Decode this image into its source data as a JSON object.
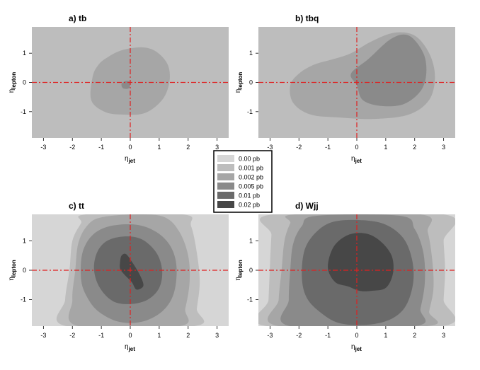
{
  "chart_data": [
    {
      "type": "heatmap",
      "title": "a) tb",
      "xlabel": {
        "base": "η",
        "sub": "jet"
      },
      "ylabel": {
        "base": "η",
        "sub": "lepton"
      },
      "xlim": [
        -3.4,
        3.4
      ],
      "ylim": [
        -1.9,
        1.9
      ],
      "xticks": [
        -3,
        -2,
        -1,
        0,
        1,
        2,
        3
      ],
      "yticks": [
        1,
        0,
        -1
      ],
      "background_level": "0.001 pb",
      "regions": [
        {
          "level": "0.002 pb",
          "outline": [
            [
              -1.3,
              0.2
            ],
            [
              -1.1,
              0.6
            ],
            [
              -0.8,
              0.85
            ],
            [
              -0.3,
              1.1
            ],
            [
              0.4,
              1.2
            ],
            [
              0.9,
              1.05
            ],
            [
              1.3,
              0.6
            ],
            [
              1.35,
              0.0
            ],
            [
              1.1,
              -0.6
            ],
            [
              0.5,
              -1.05
            ],
            [
              -0.3,
              -1.1
            ],
            [
              -0.9,
              -1.0
            ],
            [
              -1.35,
              -0.6
            ]
          ]
        },
        {
          "level": "0.005 pb",
          "outline": [
            [
              -0.3,
              -0.05
            ],
            [
              -0.15,
              0.05
            ],
            [
              0.0,
              0.0
            ],
            [
              -0.05,
              -0.2
            ],
            [
              -0.25,
              -0.2
            ]
          ]
        }
      ],
      "crosshair": {
        "x": 0,
        "y": 0
      }
    },
    {
      "type": "heatmap",
      "title": "b) tbq",
      "xlabel": {
        "base": "η",
        "sub": "jet"
      },
      "ylabel": {
        "base": "η",
        "sub": "lepton"
      },
      "xlim": [
        -3.4,
        3.4
      ],
      "ylim": [
        -1.9,
        1.9
      ],
      "xticks": [
        -3,
        -2,
        -1,
        0,
        1,
        2,
        3
      ],
      "yticks": [
        1,
        0,
        -1
      ],
      "background_level": "0.001 pb",
      "regions": [
        {
          "level": "0.002 pb",
          "outline": [
            [
              -2.3,
              -0.1
            ],
            [
              -2.0,
              0.3
            ],
            [
              -1.5,
              0.6
            ],
            [
              -0.8,
              0.8
            ],
            [
              -0.2,
              1.0
            ],
            [
              0.5,
              1.4
            ],
            [
              1.3,
              1.7
            ],
            [
              2.0,
              1.6
            ],
            [
              2.5,
              1.0
            ],
            [
              2.7,
              0.2
            ],
            [
              2.5,
              -0.6
            ],
            [
              1.8,
              -1.1
            ],
            [
              0.6,
              -1.25
            ],
            [
              -0.6,
              -1.2
            ],
            [
              -1.6,
              -1.1
            ],
            [
              -2.2,
              -0.7
            ]
          ]
        },
        {
          "level": "0.005 pb",
          "outline": [
            [
              -0.2,
              0.3
            ],
            [
              0.4,
              0.8
            ],
            [
              1.2,
              1.5
            ],
            [
              1.8,
              1.6
            ],
            [
              2.3,
              1.0
            ],
            [
              2.4,
              0.3
            ],
            [
              2.2,
              -0.3
            ],
            [
              1.6,
              -0.75
            ],
            [
              0.8,
              -0.8
            ],
            [
              0.2,
              -0.6
            ],
            [
              0.0,
              -0.1
            ]
          ]
        }
      ],
      "crosshair": {
        "x": 0,
        "y": 0
      }
    },
    {
      "type": "heatmap",
      "title": "c) tt",
      "xlabel": {
        "base": "η",
        "sub": "jet"
      },
      "ylabel": {
        "base": "η",
        "sub": "lepton"
      },
      "xlim": [
        -3.4,
        3.4
      ],
      "ylim": [
        -1.9,
        1.9
      ],
      "xticks": [
        -3,
        -2,
        -1,
        0,
        1,
        2,
        3
      ],
      "yticks": [
        1,
        0,
        -1
      ],
      "background_level": "0.00 pb",
      "regions": [
        {
          "level": "0.001 pb",
          "outline": [
            [
              -2.2,
              -1.9
            ],
            [
              -2.25,
              -1.0
            ],
            [
              -2.1,
              0.0
            ],
            [
              -2.0,
              1.0
            ],
            [
              -1.7,
              1.6
            ],
            [
              -1.5,
              1.9
            ],
            [
              1.8,
              1.9
            ],
            [
              2.1,
              1.5
            ],
            [
              2.3,
              0.6
            ],
            [
              2.4,
              -0.4
            ],
            [
              2.3,
              -1.3
            ],
            [
              2.2,
              -1.9
            ]
          ]
        },
        {
          "level": "0.002 pb",
          "outline": [
            [
              -1.8,
              -1.9
            ],
            [
              -2.0,
              -1.0
            ],
            [
              -1.9,
              0.0
            ],
            [
              -1.8,
              0.9
            ],
            [
              -1.5,
              1.5
            ],
            [
              -1.0,
              1.8
            ],
            [
              0.3,
              1.9
            ],
            [
              1.2,
              1.8
            ],
            [
              1.7,
              1.3
            ],
            [
              2.0,
              0.5
            ],
            [
              2.05,
              -0.4
            ],
            [
              1.9,
              -1.3
            ],
            [
              1.7,
              -1.9
            ]
          ]
        },
        {
          "level": "0.005 pb",
          "outline": [
            [
              -1.7,
              -0.3
            ],
            [
              -1.65,
              0.6
            ],
            [
              -1.3,
              1.2
            ],
            [
              -0.7,
              1.5
            ],
            [
              0.2,
              1.55
            ],
            [
              0.9,
              1.3
            ],
            [
              1.4,
              0.8
            ],
            [
              1.6,
              0.1
            ],
            [
              1.5,
              -0.8
            ],
            [
              1.1,
              -1.4
            ],
            [
              0.4,
              -1.75
            ],
            [
              -0.4,
              -1.75
            ],
            [
              -1.1,
              -1.4
            ],
            [
              -1.5,
              -0.9
            ]
          ]
        },
        {
          "level": "0.01 pb",
          "outline": [
            [
              -1.25,
              0.0
            ],
            [
              -1.15,
              0.6
            ],
            [
              -0.8,
              1.0
            ],
            [
              -0.2,
              1.15
            ],
            [
              0.4,
              1.05
            ],
            [
              0.9,
              0.6
            ],
            [
              1.1,
              0.0
            ],
            [
              1.0,
              -0.6
            ],
            [
              0.6,
              -1.0
            ],
            [
              0.0,
              -1.15
            ],
            [
              -0.6,
              -1.05
            ],
            [
              -1.05,
              -0.6
            ]
          ]
        },
        {
          "level": "0.02 pb",
          "outline": [
            [
              -0.35,
              0.3
            ],
            [
              -0.3,
              0.5
            ],
            [
              -0.15,
              0.55
            ],
            [
              0.05,
              0.3
            ],
            [
              0.3,
              -0.1
            ],
            [
              0.45,
              -0.45
            ],
            [
              0.4,
              -0.6
            ],
            [
              0.2,
              -0.65
            ],
            [
              0.05,
              -0.4
            ],
            [
              -0.2,
              -0.15
            ],
            [
              -0.35,
              0.05
            ]
          ]
        }
      ],
      "crosshair": {
        "x": 0,
        "y": 0
      }
    },
    {
      "type": "heatmap",
      "title": "d) Wjj",
      "xlabel": {
        "base": "η",
        "sub": "jet"
      },
      "ylabel": {
        "base": "η",
        "sub": "lepton"
      },
      "xlim": [
        -3.4,
        3.4
      ],
      "ylim": [
        -1.9,
        1.9
      ],
      "xticks": [
        -3,
        -2,
        -1,
        0,
        1,
        2,
        3
      ],
      "yticks": [
        1,
        0,
        -1
      ],
      "background_level": "0.00 pb",
      "regions": [
        {
          "level": "0.001 pb",
          "outline": [
            [
              -3.1,
              -1.9
            ],
            [
              -3.05,
              -1.0
            ],
            [
              -3.0,
              0.2
            ],
            [
              -2.95,
              1.2
            ],
            [
              -2.9,
              1.9
            ],
            [
              3.0,
              1.9
            ],
            [
              3.0,
              1.0
            ],
            [
              3.05,
              0.0
            ],
            [
              3.0,
              -1.0
            ],
            [
              2.95,
              -1.9
            ]
          ]
        },
        {
          "level": "0.002 pb",
          "outline": [
            [
              -2.7,
              -1.9
            ],
            [
              -2.7,
              -1.0
            ],
            [
              -2.6,
              0.0
            ],
            [
              -2.5,
              1.0
            ],
            [
              -2.3,
              1.6
            ],
            [
              -2.1,
              1.9
            ],
            [
              2.2,
              1.9
            ],
            [
              2.45,
              1.3
            ],
            [
              2.6,
              0.4
            ],
            [
              2.65,
              -0.6
            ],
            [
              2.5,
              -1.4
            ],
            [
              2.4,
              -1.9
            ]
          ]
        },
        {
          "level": "0.005 pb",
          "outline": [
            [
              -2.3,
              -1.9
            ],
            [
              -2.35,
              -1.0
            ],
            [
              -2.3,
              0.0
            ],
            [
              -2.2,
              0.9
            ],
            [
              -1.9,
              1.5
            ],
            [
              -1.4,
              1.85
            ],
            [
              1.5,
              1.85
            ],
            [
              2.0,
              1.4
            ],
            [
              2.3,
              0.6
            ],
            [
              2.35,
              -0.4
            ],
            [
              2.2,
              -1.3
            ],
            [
              2.0,
              -1.9
            ]
          ]
        },
        {
          "level": "0.01 pb",
          "outline": [
            [
              -1.9,
              -0.2
            ],
            [
              -1.8,
              0.7
            ],
            [
              -1.4,
              1.3
            ],
            [
              -0.8,
              1.65
            ],
            [
              0.2,
              1.7
            ],
            [
              1.0,
              1.55
            ],
            [
              1.6,
              1.1
            ],
            [
              1.9,
              0.4
            ],
            [
              1.95,
              -0.4
            ],
            [
              1.7,
              -1.2
            ],
            [
              1.2,
              -1.65
            ],
            [
              0.4,
              -1.85
            ],
            [
              -0.6,
              -1.8
            ],
            [
              -1.3,
              -1.4
            ],
            [
              -1.75,
              -0.9
            ]
          ]
        },
        {
          "level": "0.02 pb",
          "outline": [
            [
              -1.0,
              0.1
            ],
            [
              -0.8,
              0.8
            ],
            [
              -0.3,
              1.2
            ],
            [
              0.3,
              1.25
            ],
            [
              0.8,
              1.0
            ],
            [
              1.2,
              0.5
            ],
            [
              1.25,
              -0.1
            ],
            [
              1.0,
              -0.6
            ],
            [
              0.5,
              -0.7
            ],
            [
              0.1,
              -0.7
            ],
            [
              -0.3,
              -0.55
            ],
            [
              -0.75,
              -0.4
            ]
          ]
        }
      ],
      "crosshair": {
        "x": 0,
        "y": 0
      }
    }
  ],
  "legend": {
    "items": [
      {
        "label": "0.00 pb",
        "color": "#d6d6d6"
      },
      {
        "label": "0.001 pb",
        "color": "#bdbdbd"
      },
      {
        "label": "0.002 pb",
        "color": "#a6a6a6"
      },
      {
        "label": "0.005 pb",
        "color": "#8a8a8a"
      },
      {
        "label": "0.01 pb",
        "color": "#6a6a6a"
      },
      {
        "label": "0.02 pb",
        "color": "#474747"
      }
    ]
  },
  "colors": {
    "crosshair": "#e02020"
  }
}
